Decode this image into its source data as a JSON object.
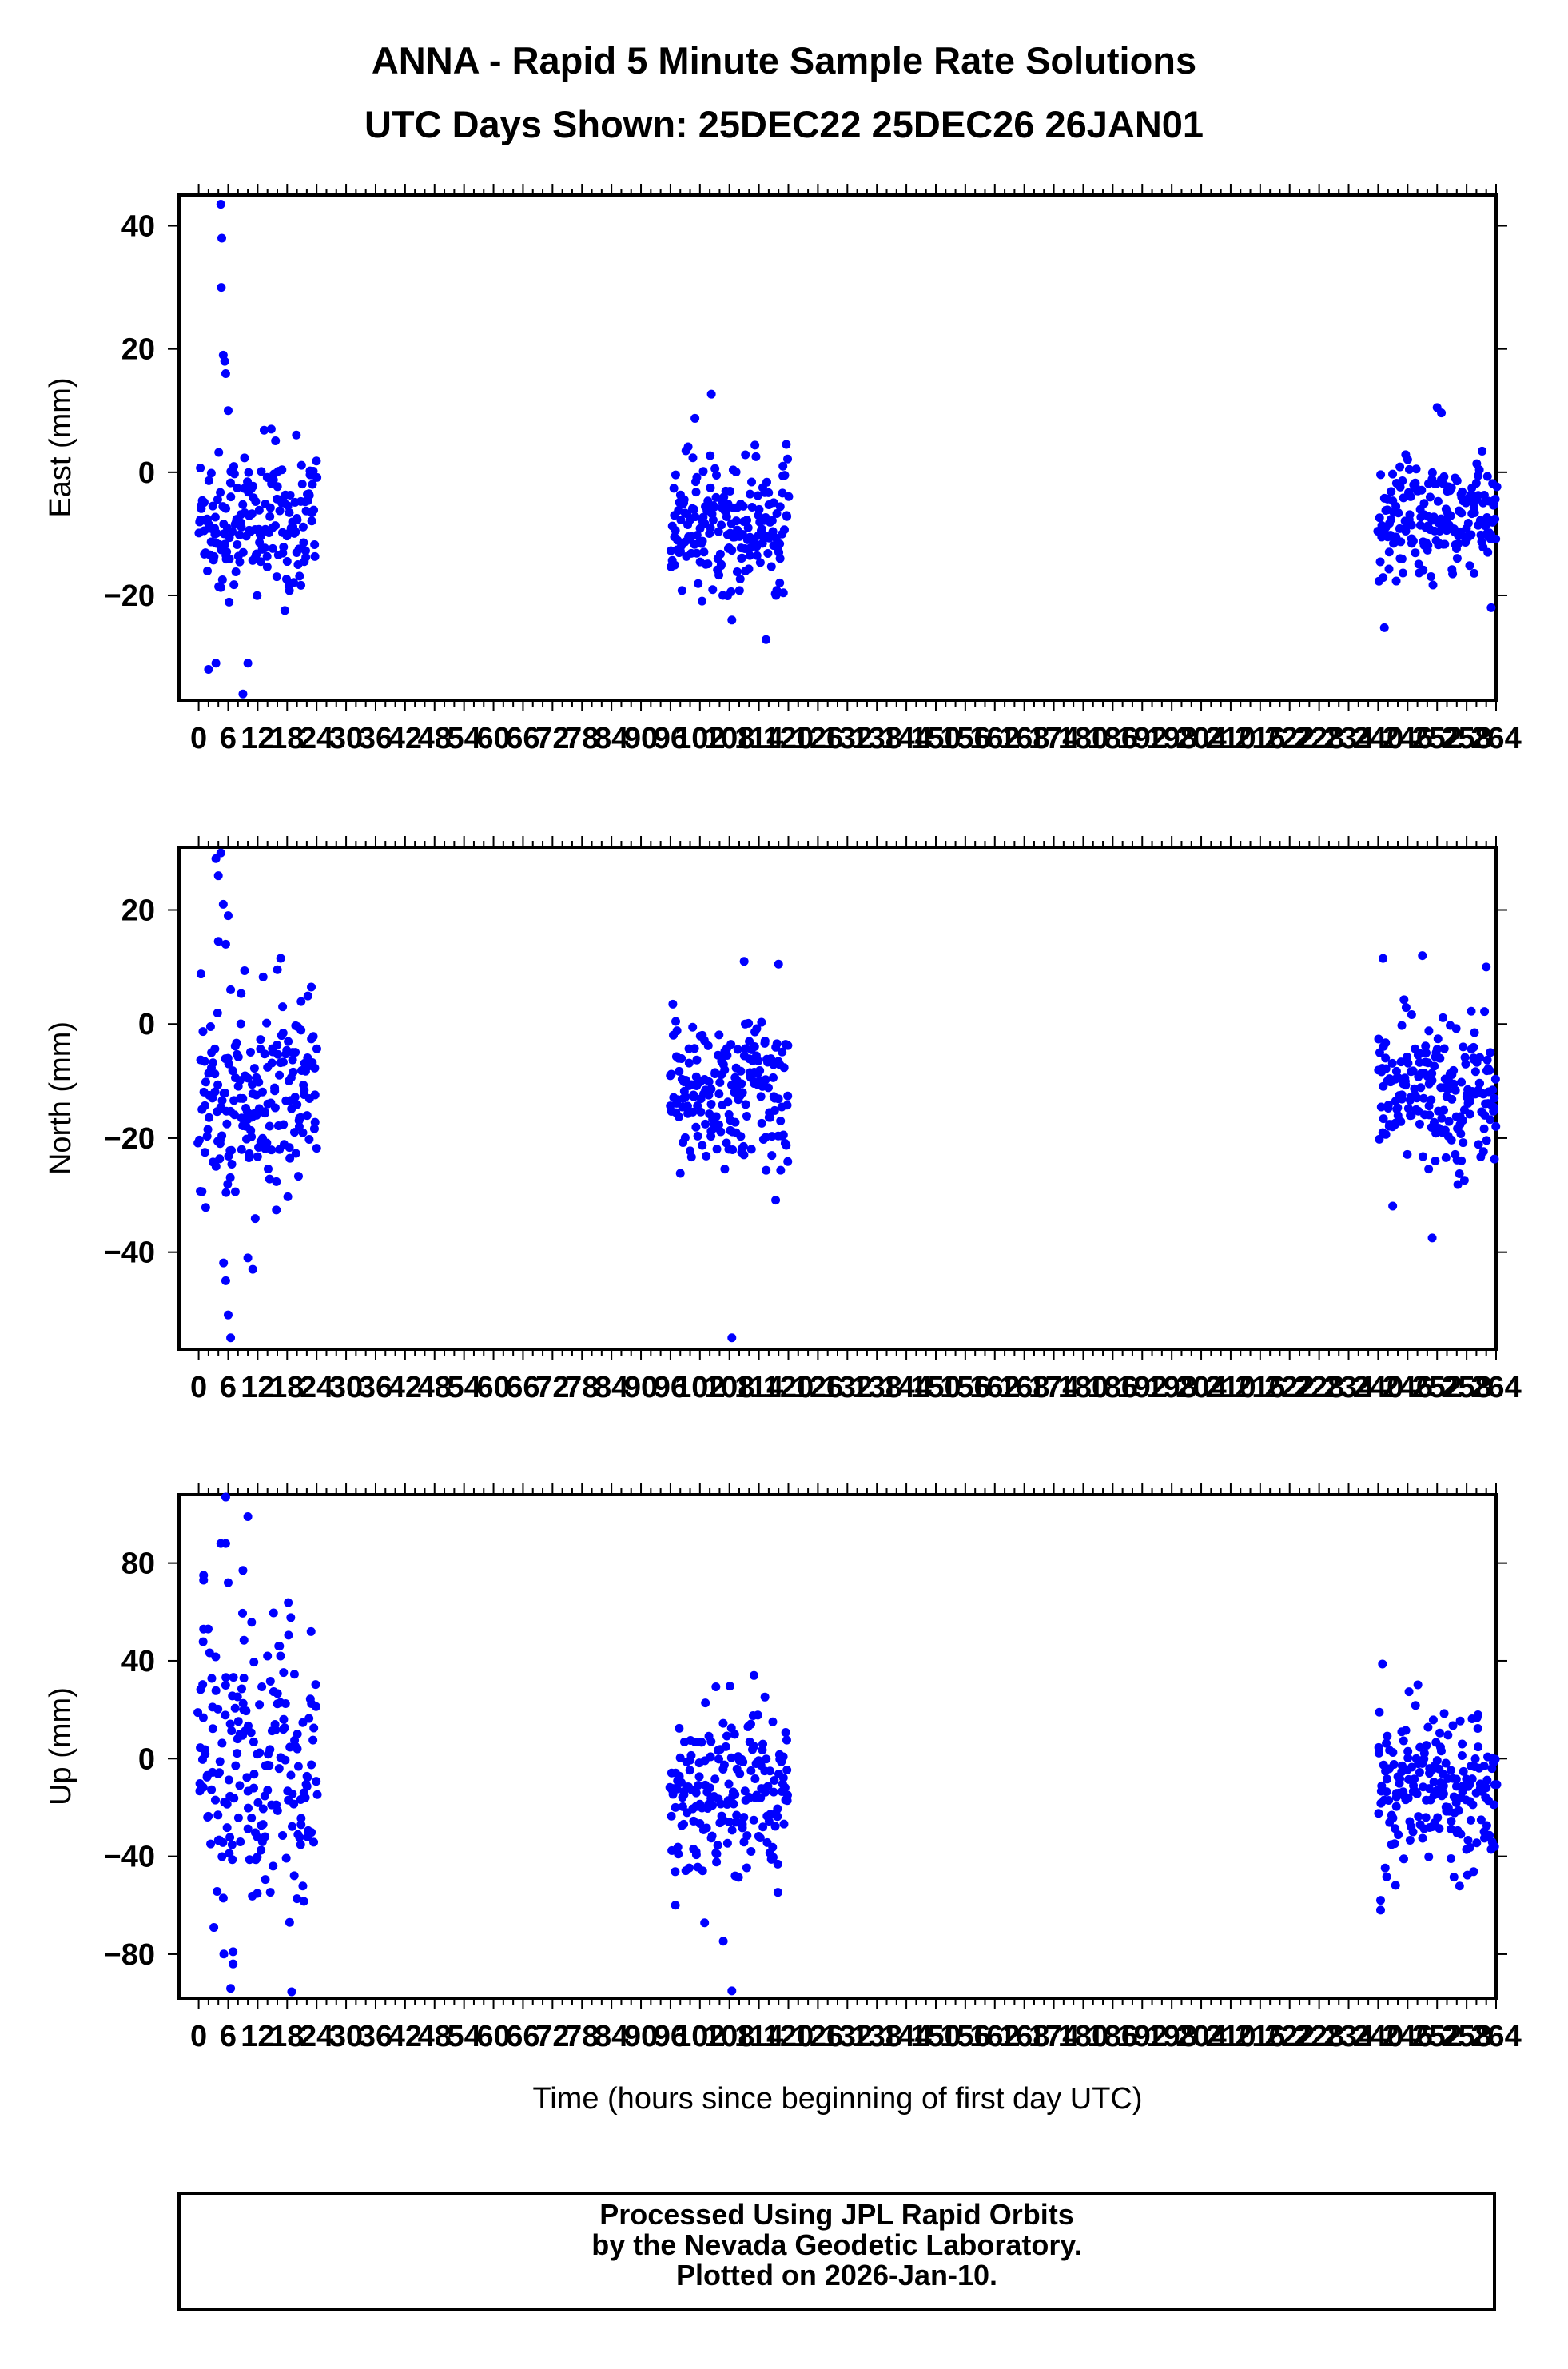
{
  "title_line1": "ANNA - Rapid 5 Minute Sample Rate Solutions",
  "title_line2": "UTC Days Shown:  25DEC22 25DEC26 26JAN01",
  "footer": {
    "line1": "Processed Using JPL Rapid Orbits",
    "line2": "by the Nevada Geodetic Laboratory.",
    "line3": "Plotted on 2026-Jan-10."
  },
  "colors": {
    "points": "#0000ff",
    "axes": "#000000",
    "background": "#ffffff"
  },
  "chart_data": [
    {
      "type": "scatter",
      "ylabel": "East (mm)",
      "xlabel": "",
      "xlim": [
        -4,
        264
      ],
      "ylim": [
        -37,
        45
      ],
      "yticks": [
        -20,
        0,
        20,
        40
      ],
      "xticks": [
        0,
        6,
        12,
        18,
        24,
        30,
        36,
        42,
        48,
        54,
        60,
        66,
        72,
        78,
        84,
        90,
        96,
        102,
        108,
        114,
        120,
        126,
        132,
        138,
        144,
        150,
        156,
        162,
        168,
        174,
        180,
        186,
        192,
        198,
        204,
        210,
        216,
        222,
        228,
        234,
        240,
        246,
        252,
        258,
        264
      ],
      "clusters": [
        {
          "x_range": [
            0,
            24
          ],
          "center": -8,
          "spread": 6
        },
        {
          "x_range": [
            96,
            120
          ],
          "center": -8,
          "spread": 5.5
        },
        {
          "x_range": [
            240,
            264
          ],
          "center": -8,
          "spread": 5
        }
      ],
      "outliers": [
        [
          4.5,
          43.5
        ],
        [
          4.7,
          38
        ],
        [
          4.6,
          30
        ],
        [
          5,
          19
        ],
        [
          5.3,
          18
        ],
        [
          5.5,
          16
        ],
        [
          3.5,
          -31
        ],
        [
          2,
          -32
        ],
        [
          9,
          -36
        ],
        [
          10,
          -31
        ],
        [
          6,
          10
        ],
        [
          108.5,
          -24
        ],
        [
          252,
          10.5
        ],
        [
          263,
          -22
        ]
      ]
    },
    {
      "type": "scatter",
      "ylabel": "North (mm)",
      "xlabel": "",
      "xlim": [
        -4,
        264
      ],
      "ylim": [
        -57,
        31
      ],
      "yticks": [
        -40,
        -20,
        0,
        20
      ],
      "xticks": [
        0,
        6,
        12,
        18,
        24,
        30,
        36,
        42,
        48,
        54,
        60,
        66,
        72,
        78,
        84,
        90,
        96,
        102,
        108,
        114,
        120,
        126,
        132,
        138,
        144,
        150,
        156,
        162,
        168,
        174,
        180,
        186,
        192,
        198,
        204,
        210,
        216,
        222,
        228,
        234,
        240,
        246,
        252,
        258,
        264
      ],
      "clusters": [
        {
          "x_range": [
            0,
            24
          ],
          "center": -14,
          "spread": 9
        },
        {
          "x_range": [
            96,
            120
          ],
          "center": -12,
          "spread": 7
        },
        {
          "x_range": [
            240,
            264
          ],
          "center": -12,
          "spread": 6.5
        }
      ],
      "outliers": [
        [
          3.5,
          29
        ],
        [
          4.5,
          30
        ],
        [
          4,
          26
        ],
        [
          5,
          21
        ],
        [
          6,
          19
        ],
        [
          4,
          14.5
        ],
        [
          5.5,
          14
        ],
        [
          6.5,
          6
        ],
        [
          10,
          -41
        ],
        [
          11,
          -43
        ],
        [
          5.5,
          -45
        ],
        [
          6,
          -51
        ],
        [
          6.5,
          -55
        ],
        [
          108.5,
          -55
        ],
        [
          118,
          10.5
        ],
        [
          111,
          11
        ],
        [
          241,
          11.5
        ],
        [
          249,
          12
        ],
        [
          262,
          10
        ],
        [
          251,
          -37.5
        ]
      ]
    },
    {
      "type": "scatter",
      "ylabel": "Up (mm)",
      "xlabel": "Time (hours since beginning of first day UTC)",
      "xlim": [
        -4,
        264
      ],
      "ylim": [
        -98,
        108
      ],
      "yticks": [
        -80,
        -40,
        0,
        40,
        80
      ],
      "xticks": [
        0,
        6,
        12,
        18,
        24,
        30,
        36,
        42,
        48,
        54,
        60,
        66,
        72,
        78,
        84,
        90,
        96,
        102,
        108,
        114,
        120,
        126,
        132,
        138,
        144,
        150,
        156,
        162,
        168,
        174,
        180,
        186,
        192,
        198,
        204,
        210,
        216,
        222,
        228,
        234,
        240,
        246,
        252,
        258,
        264
      ],
      "clusters": [
        {
          "x_range": [
            0,
            24
          ],
          "center": -5,
          "spread": 28
        },
        {
          "x_range": [
            96,
            120
          ],
          "center": -15,
          "spread": 17
        },
        {
          "x_range": [
            240,
            264
          ],
          "center": -10,
          "spread": 15
        }
      ],
      "outliers": [
        [
          5.5,
          107
        ],
        [
          4.5,
          88
        ],
        [
          5.5,
          88
        ],
        [
          10,
          99
        ],
        [
          1,
          75
        ],
        [
          1,
          73
        ],
        [
          6,
          72
        ],
        [
          9,
          77
        ],
        [
          1,
          53
        ],
        [
          7,
          -79
        ],
        [
          7,
          -84
        ],
        [
          6.5,
          -94
        ],
        [
          108.5,
          -95
        ],
        [
          18.5,
          -67
        ],
        [
          97,
          -60
        ],
        [
          240.5,
          -62
        ],
        [
          240.5,
          -58
        ],
        [
          113,
          34
        ]
      ]
    }
  ]
}
